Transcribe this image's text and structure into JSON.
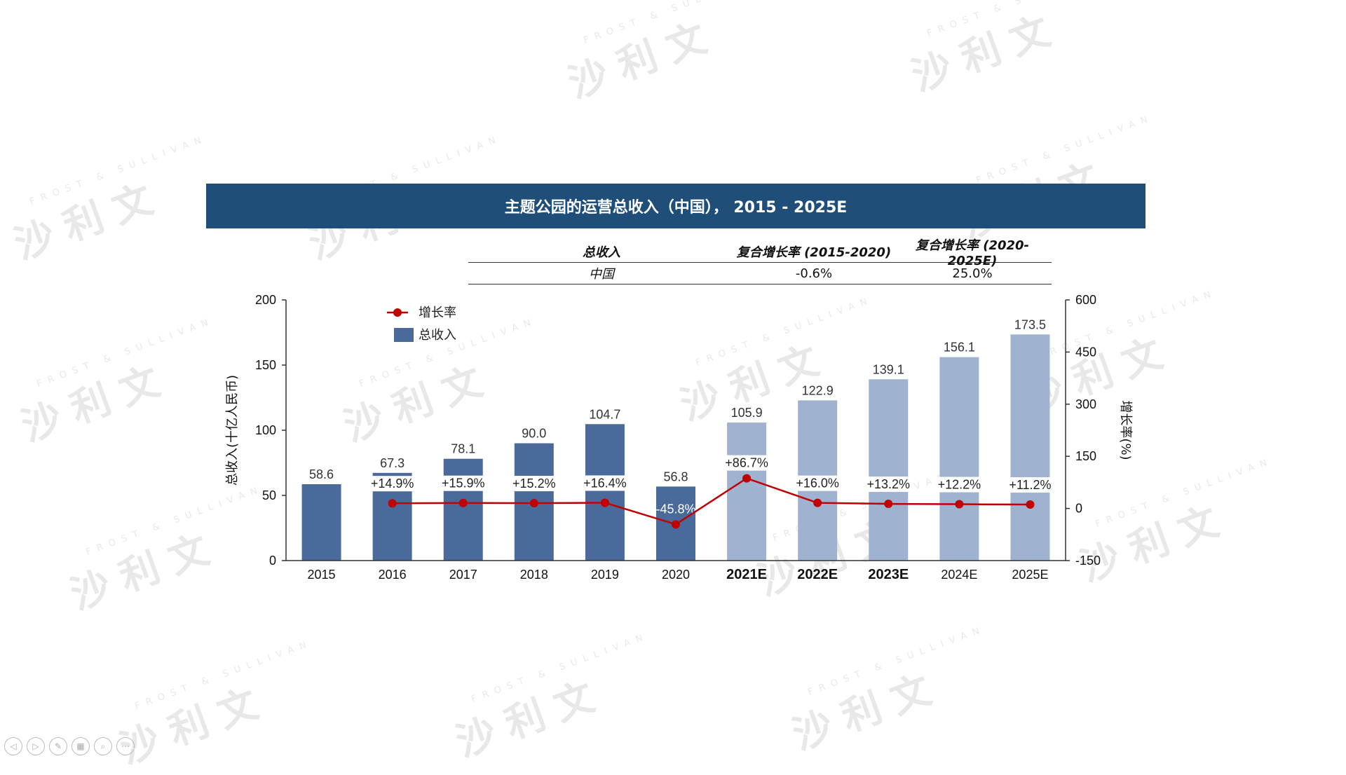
{
  "title": "主题公园的运营总收入（中国）， 2015 - 2025E",
  "summary": {
    "headers": [
      "总收入",
      "复合增长率 (2015-2020)",
      "复合增长率 (2020-2025E)"
    ],
    "row": [
      "中国",
      "-0.6%",
      "25.0%"
    ]
  },
  "watermark": {
    "cn": "沙利文",
    "en": "FROST & SULLIVAN"
  },
  "chart_data": {
    "type": "bar",
    "categories": [
      "2015",
      "2016",
      "2017",
      "2018",
      "2019",
      "2020",
      "2021E",
      "2022E",
      "2023E",
      "2024E",
      "2025E"
    ],
    "bold_categories": [
      "2021E",
      "2022E",
      "2023E"
    ],
    "series": [
      {
        "name": "总收入",
        "type": "bar",
        "axis": "left",
        "values": [
          58.6,
          67.3,
          78.1,
          90.0,
          104.7,
          56.8,
          105.9,
          122.9,
          139.1,
          156.1,
          173.5
        ],
        "value_labels": [
          "58.6",
          "67.3",
          "78.1",
          "90.0",
          "104.7",
          "56.8",
          "105.9",
          "122.9",
          "139.1",
          "156.1",
          "173.5"
        ],
        "colors": [
          "#4a6a9c",
          "#4a6a9c",
          "#4a6a9c",
          "#4a6a9c",
          "#4a6a9c",
          "#4a6a9c",
          "#9fb2d0",
          "#9fb2d0",
          "#9fb2d0",
          "#9fb2d0",
          "#9fb2d0"
        ]
      },
      {
        "name": "增长率",
        "type": "line",
        "axis": "right",
        "values": [
          null,
          14.9,
          15.9,
          15.2,
          16.4,
          -45.8,
          86.7,
          16.0,
          13.2,
          12.2,
          11.2
        ],
        "value_labels": [
          "",
          "+14.9%",
          "+15.9%",
          "+15.2%",
          "+16.4%",
          "-45.8%",
          "+86.7%",
          "+16.0%",
          "+13.2%",
          "+12.2%",
          "+11.2%"
        ],
        "color": "#c00000"
      }
    ],
    "ylabel": "总收入(十亿人民币)",
    "ylabel_right": "增长率(%)",
    "ylim": [
      0,
      200
    ],
    "yticks": [
      0,
      50,
      100,
      150,
      200
    ],
    "ylim_right": [
      -150,
      600
    ],
    "yticks_right": [
      -150,
      0,
      150,
      300,
      450,
      600
    ],
    "legend": [
      "增长率",
      "总收入"
    ],
    "legend_position": "top-left",
    "grid": false
  }
}
